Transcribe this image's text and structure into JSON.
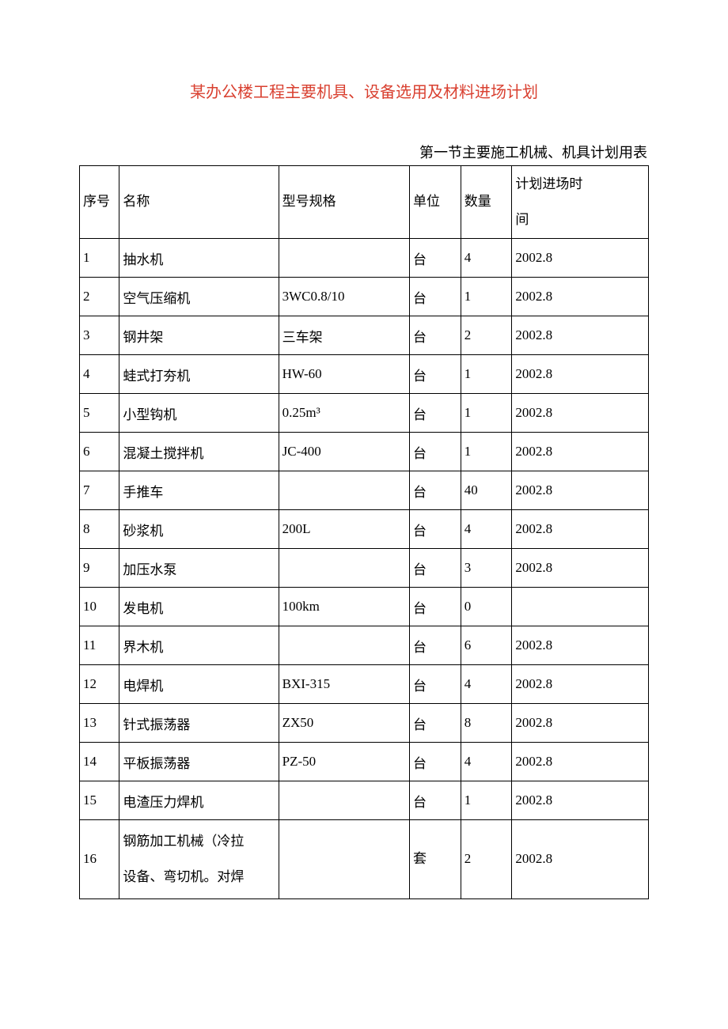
{
  "title_text": "某办公楼工程主要机具、设备选用及材料进场计划",
  "title_color": "#d94030",
  "subtitle": "第一节主要施工机械、机具计划用表",
  "columns": [
    "序号",
    "名称",
    "型号规格",
    "单位",
    "数量",
    "计划进场时\n间"
  ],
  "rows": [
    [
      "1",
      "抽水机",
      "",
      "台",
      "4",
      "2002.8"
    ],
    [
      "2",
      "空气压缩机",
      "3WC0.8/10",
      "台",
      "1",
      "2002.8"
    ],
    [
      "3",
      "钢井架",
      "三车架",
      "台",
      "2",
      "2002.8"
    ],
    [
      "4",
      "蛙式打夯机",
      "HW-60",
      "台",
      "1",
      "2002.8"
    ],
    [
      "5",
      "小型钩机",
      "0.25m³",
      "台",
      "1",
      "2002.8"
    ],
    [
      "6",
      "混凝土搅拌机",
      "JC-400",
      "台",
      "1",
      "2002.8"
    ],
    [
      "7",
      "手推车",
      "",
      "台",
      "40",
      "2002.8"
    ],
    [
      "8",
      "砂浆机",
      "200L",
      "台",
      "4",
      "2002.8"
    ],
    [
      "9",
      "加压水泵",
      "",
      "台",
      "3",
      "2002.8"
    ],
    [
      "10",
      "发电机",
      "100km",
      "台",
      "0",
      ""
    ],
    [
      "11",
      "界木机",
      "",
      "台",
      "6",
      "2002.8"
    ],
    [
      "12",
      "电焊机",
      "BXI-315",
      "台",
      "4",
      "2002.8"
    ],
    [
      "13",
      "针式振荡器",
      "ZX50",
      "台",
      "8",
      "2002.8"
    ],
    [
      "14",
      "平板振荡器",
      "PZ-50",
      "台",
      "4",
      "2002.8"
    ],
    [
      "15",
      "电渣压力焊机",
      "",
      "台",
      "1",
      "2002.8"
    ],
    [
      "16",
      "钢筋加工机械（冷拉\n设备、弯切机。对焊",
      "",
      "套",
      "2",
      "2002.8"
    ]
  ],
  "tall_rows": [
    15
  ]
}
